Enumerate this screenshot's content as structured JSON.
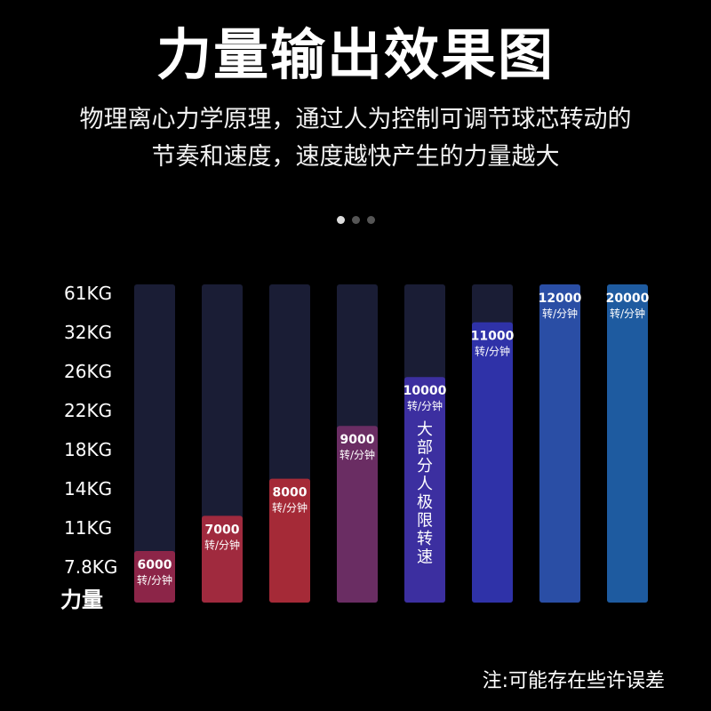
{
  "title": "力量输出效果图",
  "subtitle_lines": [
    "物理离心力学原理，通过人为控制可调节球芯转动的",
    "节奏和速度，速度越快产生的力量越大"
  ],
  "footnote": "注:可能存在些许误差",
  "colors": {
    "background": "#000000",
    "track": "#1a1d35",
    "bars": [
      "#8c2548",
      "#a02a3e",
      "#a52a37",
      "#6a2d63",
      "#3c2fa0",
      "#2f32a8",
      "#2a4ea5",
      "#1e5ba0"
    ]
  },
  "chart_data": {
    "type": "bar",
    "ylabel": "力量",
    "y_ticks": [
      "61KG",
      "32KG",
      "26KG",
      "22KG",
      "18KG",
      "14KG",
      "11KG",
      "7.8KG"
    ],
    "series": [
      {
        "values": [
          6000,
          7000,
          8000,
          9000,
          10000,
          11000,
          12000,
          20000
        ],
        "force_level_index": [
          0,
          0.9,
          1.85,
          3.2,
          4.45,
          5.85,
          6.85,
          8
        ]
      }
    ],
    "value_labels": [
      "6000",
      "7000",
      "8000",
      "9000",
      "10000",
      "11000",
      "12000",
      "20000"
    ],
    "unit_label": "转/分钟",
    "annotation": {
      "bar_index": 4,
      "text": "大部分人极限转速"
    }
  }
}
